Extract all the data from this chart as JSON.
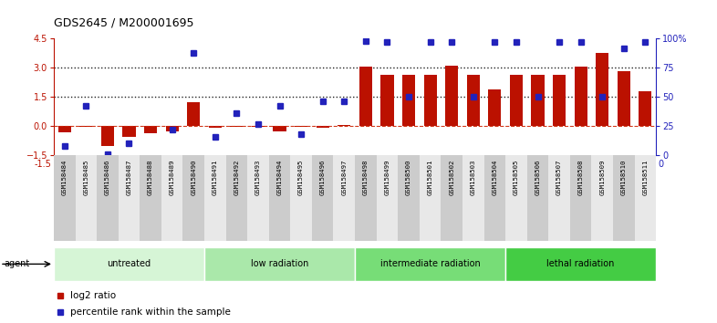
{
  "title": "GDS2645 / M200001695",
  "samples": [
    "GSM158484",
    "GSM158485",
    "GSM158486",
    "GSM158487",
    "GSM158488",
    "GSM158489",
    "GSM158490",
    "GSM158491",
    "GSM158492",
    "GSM158493",
    "GSM158494",
    "GSM158495",
    "GSM158496",
    "GSM158497",
    "GSM158498",
    "GSM158499",
    "GSM158500",
    "GSM158501",
    "GSM158502",
    "GSM158503",
    "GSM158504",
    "GSM158505",
    "GSM158506",
    "GSM158507",
    "GSM158508",
    "GSM158509",
    "GSM158510",
    "GSM158511"
  ],
  "log2_ratio": [
    -0.35,
    -0.05,
    -1.05,
    -0.55,
    -0.38,
    -0.3,
    1.25,
    -0.1,
    -0.05,
    -0.05,
    -0.28,
    -0.05,
    -0.08,
    0.05,
    3.05,
    2.65,
    2.65,
    2.65,
    3.1,
    2.65,
    1.9,
    2.65,
    2.65,
    2.65,
    3.05,
    3.75,
    2.85,
    1.8
  ],
  "percentile_rank": [
    8,
    42,
    1,
    10,
    null,
    22,
    88,
    16,
    36,
    27,
    42,
    18,
    46,
    46,
    98,
    97,
    50,
    97,
    97,
    50,
    97,
    97,
    50,
    97,
    97,
    50,
    92,
    97
  ],
  "groups": [
    {
      "label": "untreated",
      "start": 0,
      "end": 7
    },
    {
      "label": "low radiation",
      "start": 7,
      "end": 14
    },
    {
      "label": "intermediate radiation",
      "start": 14,
      "end": 21
    },
    {
      "label": "lethal radiation",
      "start": 21,
      "end": 28
    }
  ],
  "group_colors": [
    "#d6f5d6",
    "#aae8aa",
    "#77dd77",
    "#44cc44"
  ],
  "ylim_left": [
    -1.5,
    4.5
  ],
  "ylim_right": [
    0,
    100
  ],
  "bar_color": "#bb1100",
  "point_color": "#2222bb",
  "zero_line_color": "#cc2200",
  "dotted_line_color": "#222222",
  "bg_color": "#ffffff",
  "tick_bg_colors": [
    "#cccccc",
    "#e8e8e8"
  ]
}
